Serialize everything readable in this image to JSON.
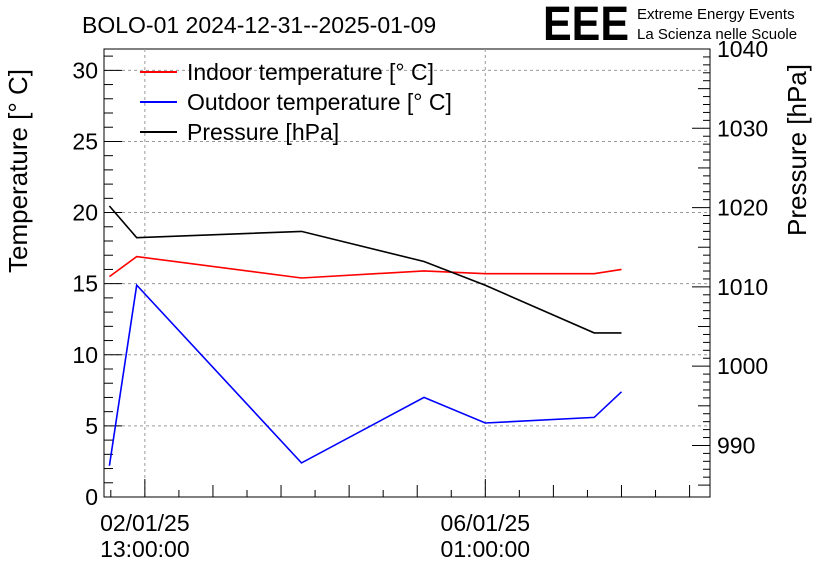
{
  "chart_data": {
    "type": "line",
    "title": "BOLO-01 2024-12-31--2025-01-09",
    "logo": {
      "text": "EEE",
      "line1": "Extreme Energy Events",
      "line2": "La Scienza nelle Scuole",
      "color": "#1f1ff0"
    },
    "ylabel": "Temperature [° C]",
    "y2label": "Pressure [hPa]",
    "ylim": [
      0,
      31.5
    ],
    "y2lim": [
      983.5,
      1040
    ],
    "xlim": [
      -0.6,
      8.3
    ],
    "yticks": [
      "0",
      "5",
      "10",
      "15",
      "20",
      "25",
      "30"
    ],
    "y2ticks": [
      "990",
      "1000",
      "1010",
      "1020",
      "1030",
      "1040"
    ],
    "xticks": [
      {
        "pos": 0.0,
        "line1": "02/01/25",
        "line2": "13:00:00"
      },
      {
        "pos": 5.0,
        "line1": "06/01/25",
        "line2": "01:00:00"
      }
    ],
    "grid": true,
    "legend": "top-left",
    "series": [
      {
        "name": "Indoor temperature [° C]",
        "axis": "left",
        "color": "#ff0000",
        "x": [
          -0.52,
          -0.12,
          2.3,
          4.1,
          5.0,
          6.6,
          7.0
        ],
        "values": [
          15.5,
          16.9,
          15.4,
          15.9,
          15.7,
          15.7,
          16.0
        ]
      },
      {
        "name": "Outdoor temperature [° C]",
        "axis": "left",
        "color": "#0000ff",
        "x": [
          -0.52,
          -0.12,
          2.3,
          4.1,
          5.0,
          6.6,
          7.0
        ],
        "values": [
          2.2,
          14.9,
          2.4,
          7.0,
          5.2,
          5.6,
          7.4
        ]
      },
      {
        "name": "Pressure [hPa]",
        "axis": "right",
        "color": "#000000",
        "x": [
          -0.52,
          -0.12,
          2.3,
          4.1,
          5.0,
          6.6,
          7.0
        ],
        "values": [
          1020.2,
          1016.2,
          1017.0,
          1013.2,
          1010.2,
          1004.2,
          1004.2
        ]
      }
    ]
  }
}
